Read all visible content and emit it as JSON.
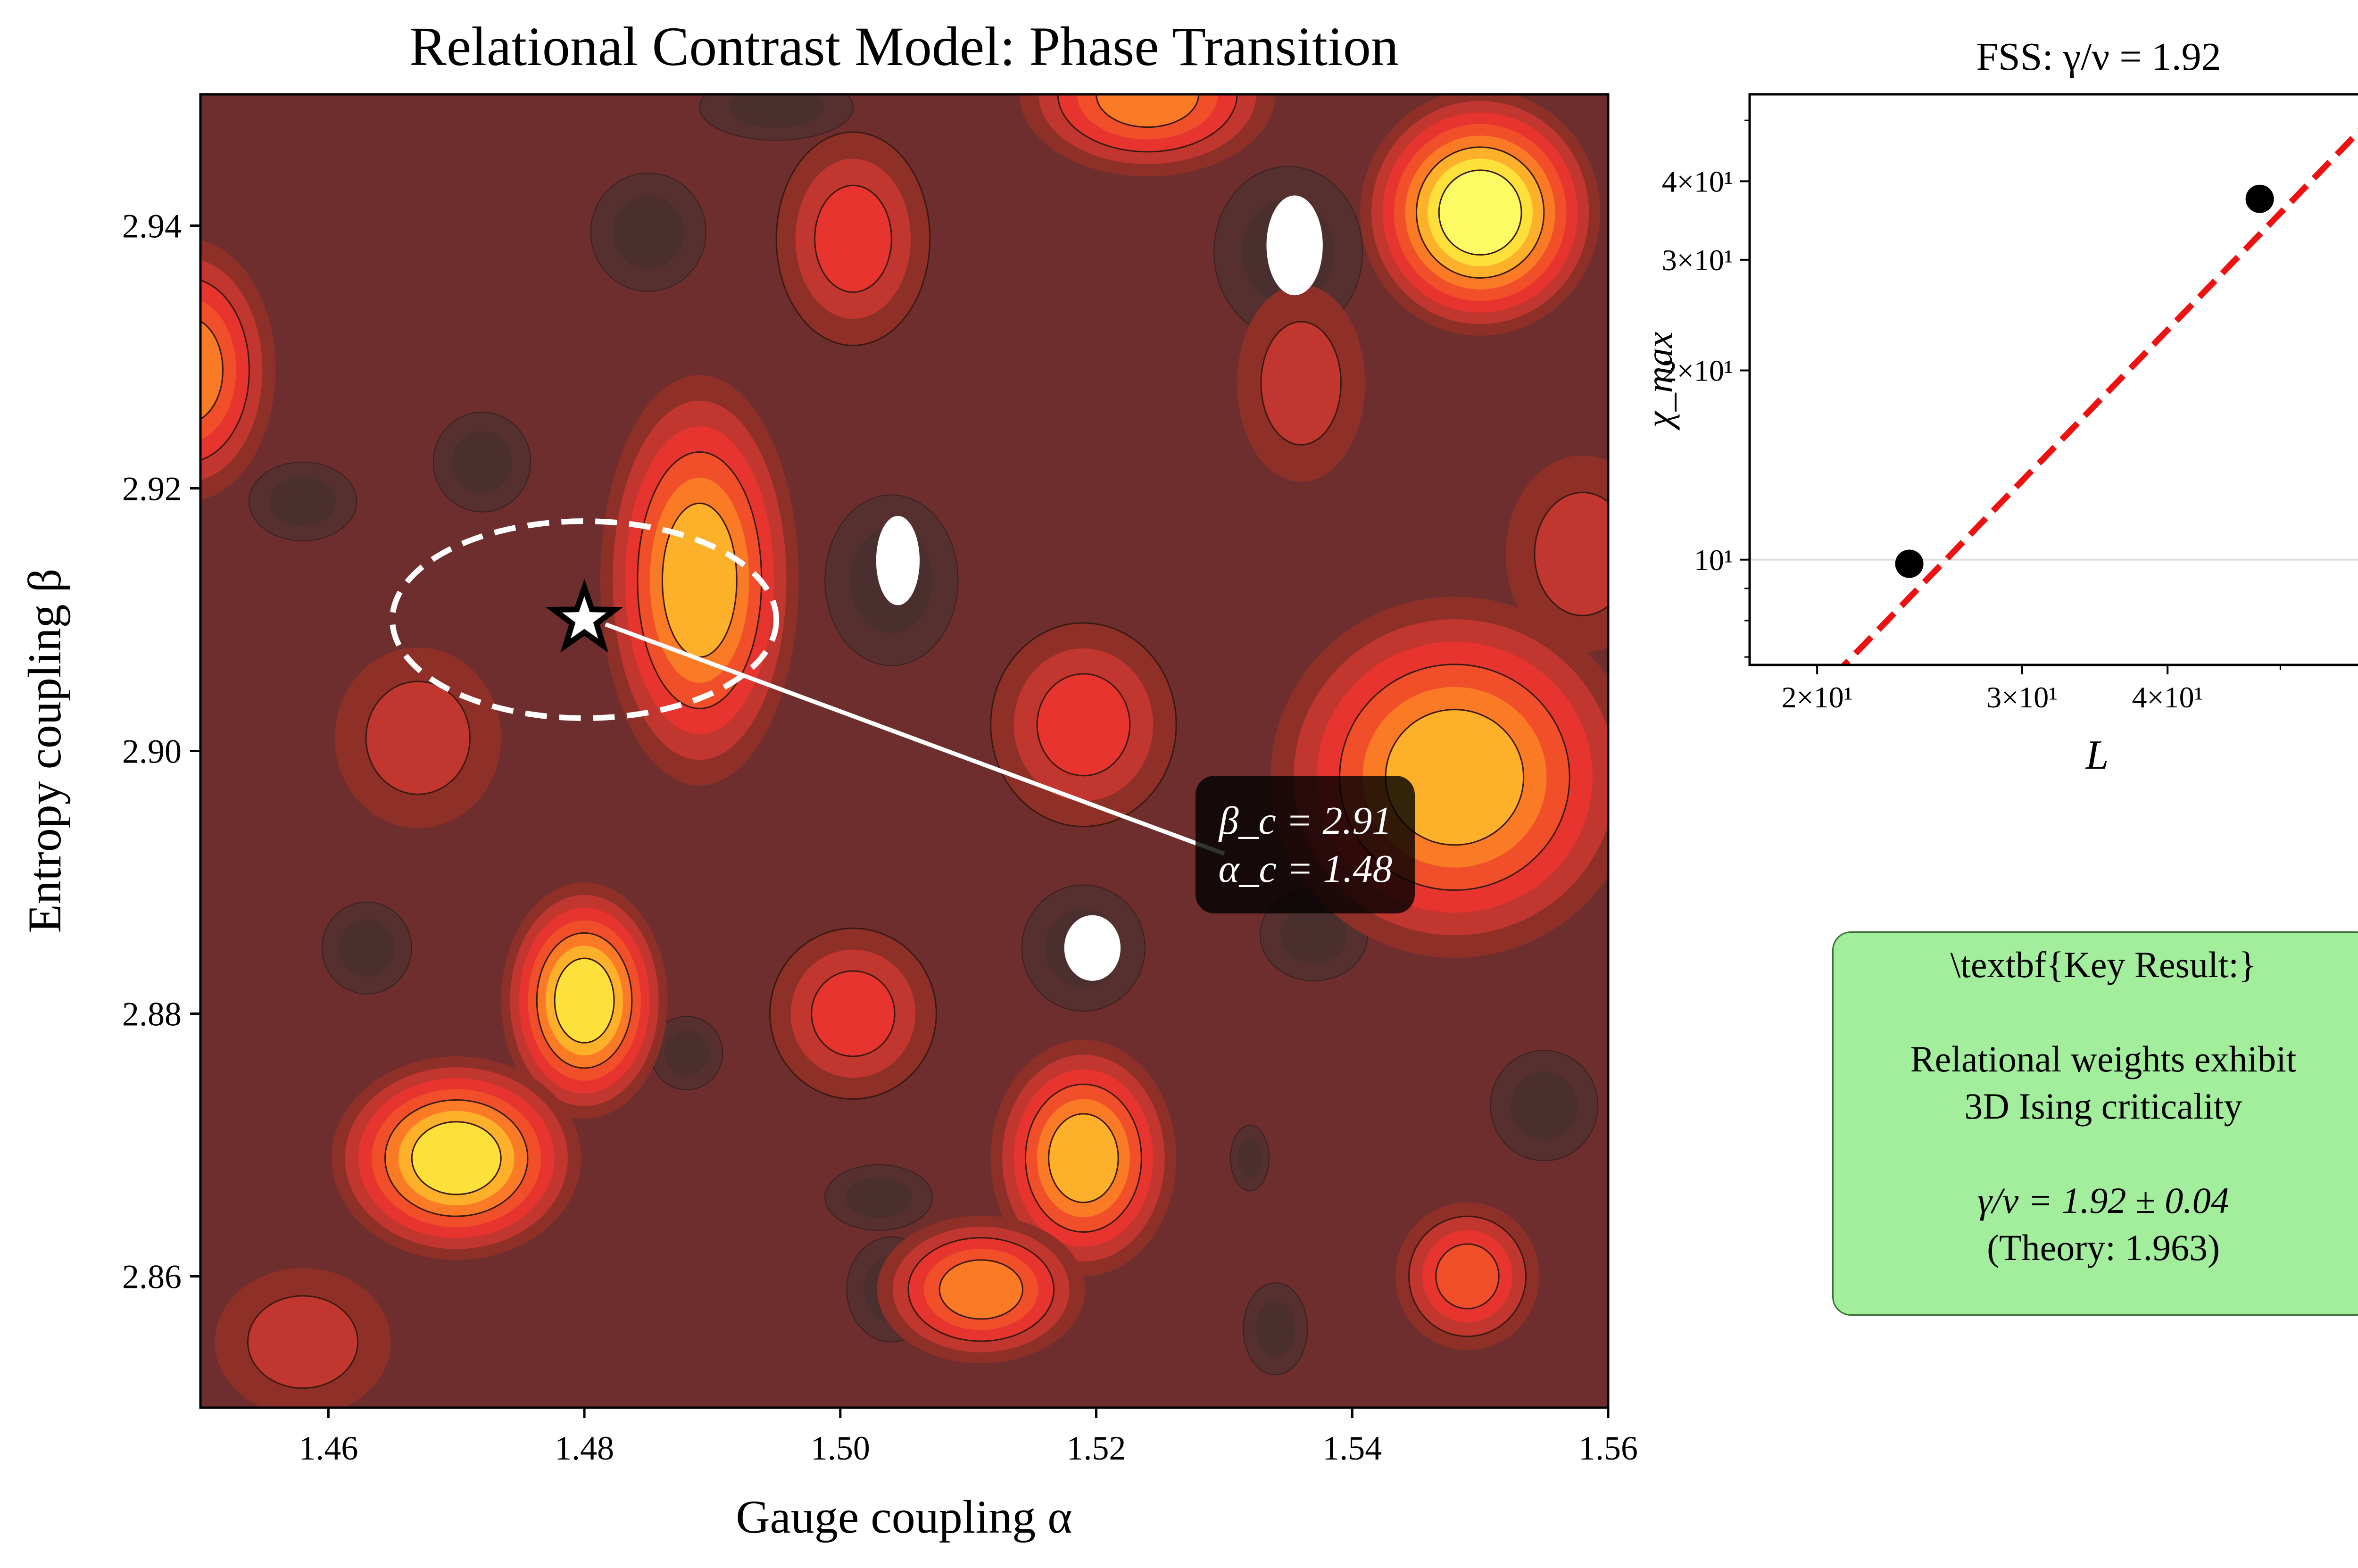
{
  "colors": {
    "background_level": "#6e2e2e",
    "low_level_1": "#55302f",
    "low_level_2": "#4a2f2e",
    "level_3": "#8e3028",
    "level_4": "#c23630",
    "level_5": "#e8342f",
    "level_6": "#f04f2a",
    "level_7": "#fb7a26",
    "level_8": "#fdb02a",
    "level_9": "#fde13a",
    "level_10": "#fdfb64",
    "fit_line": "#ee1111",
    "key_box": "#a3ee9d"
  },
  "main_chart": {
    "title": "Relational Contrast Model: Phase Transition",
    "xlabel": "Gauge coupling α",
    "ylabel": "Entropy coupling β",
    "xticks": [
      "1.46",
      "1.48",
      "1.50",
      "1.52",
      "1.54",
      "1.56"
    ],
    "yticks": [
      "2.86",
      "2.88",
      "2.90",
      "2.92",
      "2.94"
    ],
    "annotation_beta": "β_c = 2.91",
    "annotation_alpha": "α_c = 1.48"
  },
  "fss_chart": {
    "title": "FSS: γ/ν = 1.92",
    "xlabel": "L",
    "ylabel": "χ_max",
    "xticks": [
      "2×10¹",
      "3×10¹",
      "4×10¹"
    ],
    "yticks": [
      "4×10¹",
      "3×10¹",
      "2×10¹",
      "10¹"
    ]
  },
  "key_result": {
    "heading": "\\textbf{Key Result:}",
    "line1": "Relational weights exhibit",
    "line2": "3D Ising criticality",
    "line3": "γ/ν = 1.92 ± 0.04",
    "line4": "(Theory: 1.963)"
  },
  "chart_data": [
    {
      "type": "heatmap",
      "xlim": [
        1.45,
        1.56
      ],
      "ylim": [
        2.85,
        2.95
      ],
      "blobs": [
        {
          "x": 1.55,
          "y": 2.941,
          "peak": 10,
          "rx": 0.0075,
          "ry": 0.0075
        },
        {
          "x": 1.548,
          "y": 2.898,
          "peak": 8,
          "rx": 0.0115,
          "ry": 0.011
        },
        {
          "x": 1.489,
          "y": 2.913,
          "peak": 8,
          "rx": 0.0062,
          "ry": 0.0125
        },
        {
          "x": 1.48,
          "y": 2.881,
          "peak": 9,
          "rx": 0.0052,
          "ry": 0.0072
        },
        {
          "x": 1.47,
          "y": 2.869,
          "peak": 9,
          "rx": 0.0078,
          "ry": 0.0062
        },
        {
          "x": 1.519,
          "y": 2.869,
          "peak": 8,
          "rx": 0.0058,
          "ry": 0.0072
        },
        {
          "x": 1.511,
          "y": 2.859,
          "peak": 7,
          "rx": 0.0065,
          "ry": 0.0045
        },
        {
          "x": 1.501,
          "y": 2.88,
          "peak": 5,
          "rx": 0.0052,
          "ry": 0.0052
        },
        {
          "x": 1.519,
          "y": 2.902,
          "peak": 5,
          "rx": 0.0058,
          "ry": 0.0062
        },
        {
          "x": 1.449,
          "y": 2.929,
          "peak": 7,
          "rx": 0.0055,
          "ry": 0.008
        },
        {
          "x": 1.524,
          "y": 2.95,
          "peak": 7,
          "rx": 0.008,
          "ry": 0.005
        },
        {
          "x": 1.501,
          "y": 2.939,
          "peak": 5,
          "rx": 0.0048,
          "ry": 0.0065
        },
        {
          "x": 1.549,
          "y": 2.86,
          "peak": 6,
          "rx": 0.0045,
          "ry": 0.0045
        },
        {
          "x": 1.467,
          "y": 2.901,
          "peak": 4,
          "rx": 0.0052,
          "ry": 0.0055
        },
        {
          "x": 1.558,
          "y": 2.915,
          "peak": 4,
          "rx": 0.0048,
          "ry": 0.006
        },
        {
          "x": 1.458,
          "y": 2.855,
          "peak": 4,
          "rx": 0.0055,
          "ry": 0.0045
        },
        {
          "x": 1.536,
          "y": 2.928,
          "peak": 4,
          "rx": 0.004,
          "ry": 0.006
        }
      ],
      "holes": [
        {
          "x": 1.5355,
          "y": 2.9385,
          "rx": 0.0022,
          "ry": 0.0038
        },
        {
          "x": 1.5045,
          "y": 2.9145,
          "rx": 0.0017,
          "ry": 0.0034
        },
        {
          "x": 1.5197,
          "y": 2.885,
          "rx": 0.0022,
          "ry": 0.0025
        }
      ],
      "dark_patches": [
        {
          "x": 1.485,
          "y": 2.9395,
          "rx": 0.0045,
          "ry": 0.0045
        },
        {
          "x": 1.535,
          "y": 2.938,
          "rx": 0.0058,
          "ry": 0.0065
        },
        {
          "x": 1.504,
          "y": 2.913,
          "rx": 0.0052,
          "ry": 0.0065
        },
        {
          "x": 1.519,
          "y": 2.885,
          "rx": 0.0048,
          "ry": 0.0048
        },
        {
          "x": 1.458,
          "y": 2.919,
          "rx": 0.0042,
          "ry": 0.003
        },
        {
          "x": 1.472,
          "y": 2.922,
          "rx": 0.0038,
          "ry": 0.0038
        },
        {
          "x": 1.555,
          "y": 2.873,
          "rx": 0.0042,
          "ry": 0.0042
        },
        {
          "x": 1.537,
          "y": 2.886,
          "rx": 0.0042,
          "ry": 0.0035
        },
        {
          "x": 1.463,
          "y": 2.885,
          "rx": 0.0035,
          "ry": 0.0035
        },
        {
          "x": 1.488,
          "y": 2.877,
          "rx": 0.0028,
          "ry": 0.0028
        },
        {
          "x": 1.503,
          "y": 2.866,
          "rx": 0.0042,
          "ry": 0.0025
        },
        {
          "x": 1.504,
          "y": 2.859,
          "rx": 0.0035,
          "ry": 0.004
        },
        {
          "x": 1.534,
          "y": 2.856,
          "rx": 0.0025,
          "ry": 0.0035
        },
        {
          "x": 1.495,
          "y": 2.949,
          "rx": 0.006,
          "ry": 0.0025
        },
        {
          "x": 1.532,
          "y": 2.869,
          "rx": 0.0015,
          "ry": 0.0025
        }
      ],
      "critical_point": {
        "alpha": 1.48,
        "beta": 2.91
      },
      "critical_region": {
        "alpha_center": 1.48,
        "beta_center": 2.91,
        "alpha_halfwidth": 0.015,
        "beta_halfwidth": 0.0075
      },
      "annotation_anchor": {
        "alpha": 1.53,
        "beta": 2.892
      }
    },
    {
      "type": "scatter",
      "xscale": "log",
      "yscale": "log",
      "xlim": [
        17.5,
        64
      ],
      "ylim": [
        6.8,
        55
      ],
      "points": [
        {
          "x": 24,
          "y": 9.85
        },
        {
          "x": 48,
          "y": 37.5
        }
      ],
      "fit": {
        "type": "power-law",
        "exponent": 1.92,
        "x_range": [
          18,
          61
        ],
        "reference": {
          "x": 24,
          "y": 8.7
        }
      },
      "grid": "horizontal at 10"
    }
  ]
}
